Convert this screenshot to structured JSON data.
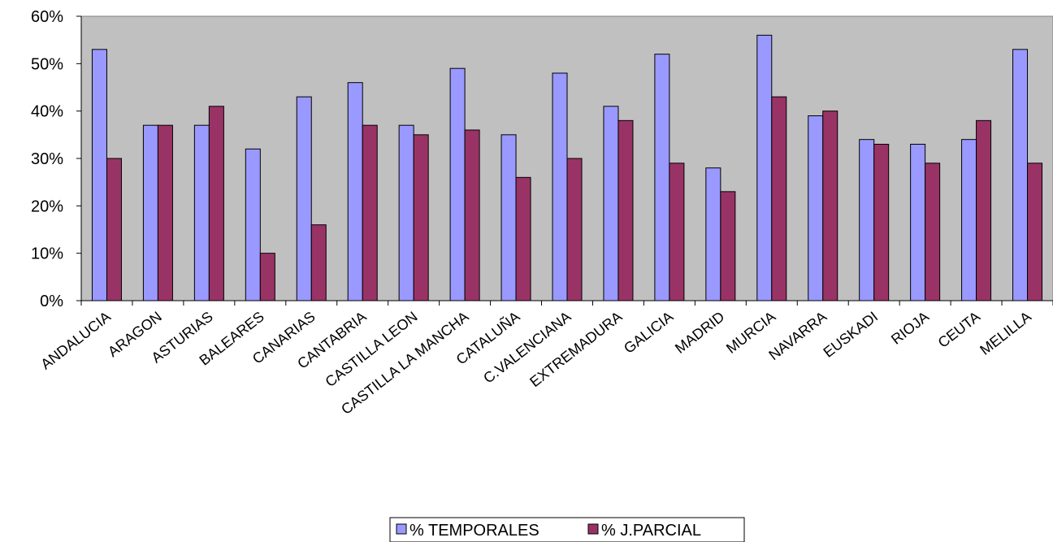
{
  "chart_data": {
    "type": "bar",
    "title": "",
    "xlabel": "",
    "ylabel": "",
    "categories": [
      "ANDALUCIA",
      "ARAGON",
      "ASTURIAS",
      "BALEARES",
      "CANARIAS",
      "CANTABRIA",
      "CASTILLA LEON",
      "CASTILLA LA MANCHA",
      "CATALUÑA",
      "C.VALENCIANA",
      "EXTREMADURA",
      "GALICIA",
      "MADRID",
      "MURCIA",
      "NAVARRA",
      "EUSKADI",
      "RIOJA",
      "CEUTA",
      "MELILLA"
    ],
    "series": [
      {
        "name": "% TEMPORALES",
        "color": "#9999ff",
        "values": [
          0.53,
          0.37,
          0.37,
          0.32,
          0.43,
          0.46,
          0.37,
          0.49,
          0.35,
          0.48,
          0.41,
          0.52,
          0.28,
          0.56,
          0.39,
          0.34,
          0.33,
          0.34,
          0.53
        ]
      },
      {
        "name": "% J.PARCIAL",
        "color": "#993366",
        "values": [
          0.3,
          0.37,
          0.41,
          0.1,
          0.16,
          0.37,
          0.35,
          0.36,
          0.26,
          0.3,
          0.38,
          0.29,
          0.23,
          0.43,
          0.4,
          0.33,
          0.29,
          0.38,
          0.29
        ]
      }
    ],
    "ylim": [
      0,
      0.6
    ],
    "yticks": [
      "0%",
      "10%",
      "20%",
      "30%",
      "40%",
      "50%",
      "60%"
    ],
    "plot_background": "#c0c0c0",
    "grid": false,
    "legend_position": "bottom"
  }
}
